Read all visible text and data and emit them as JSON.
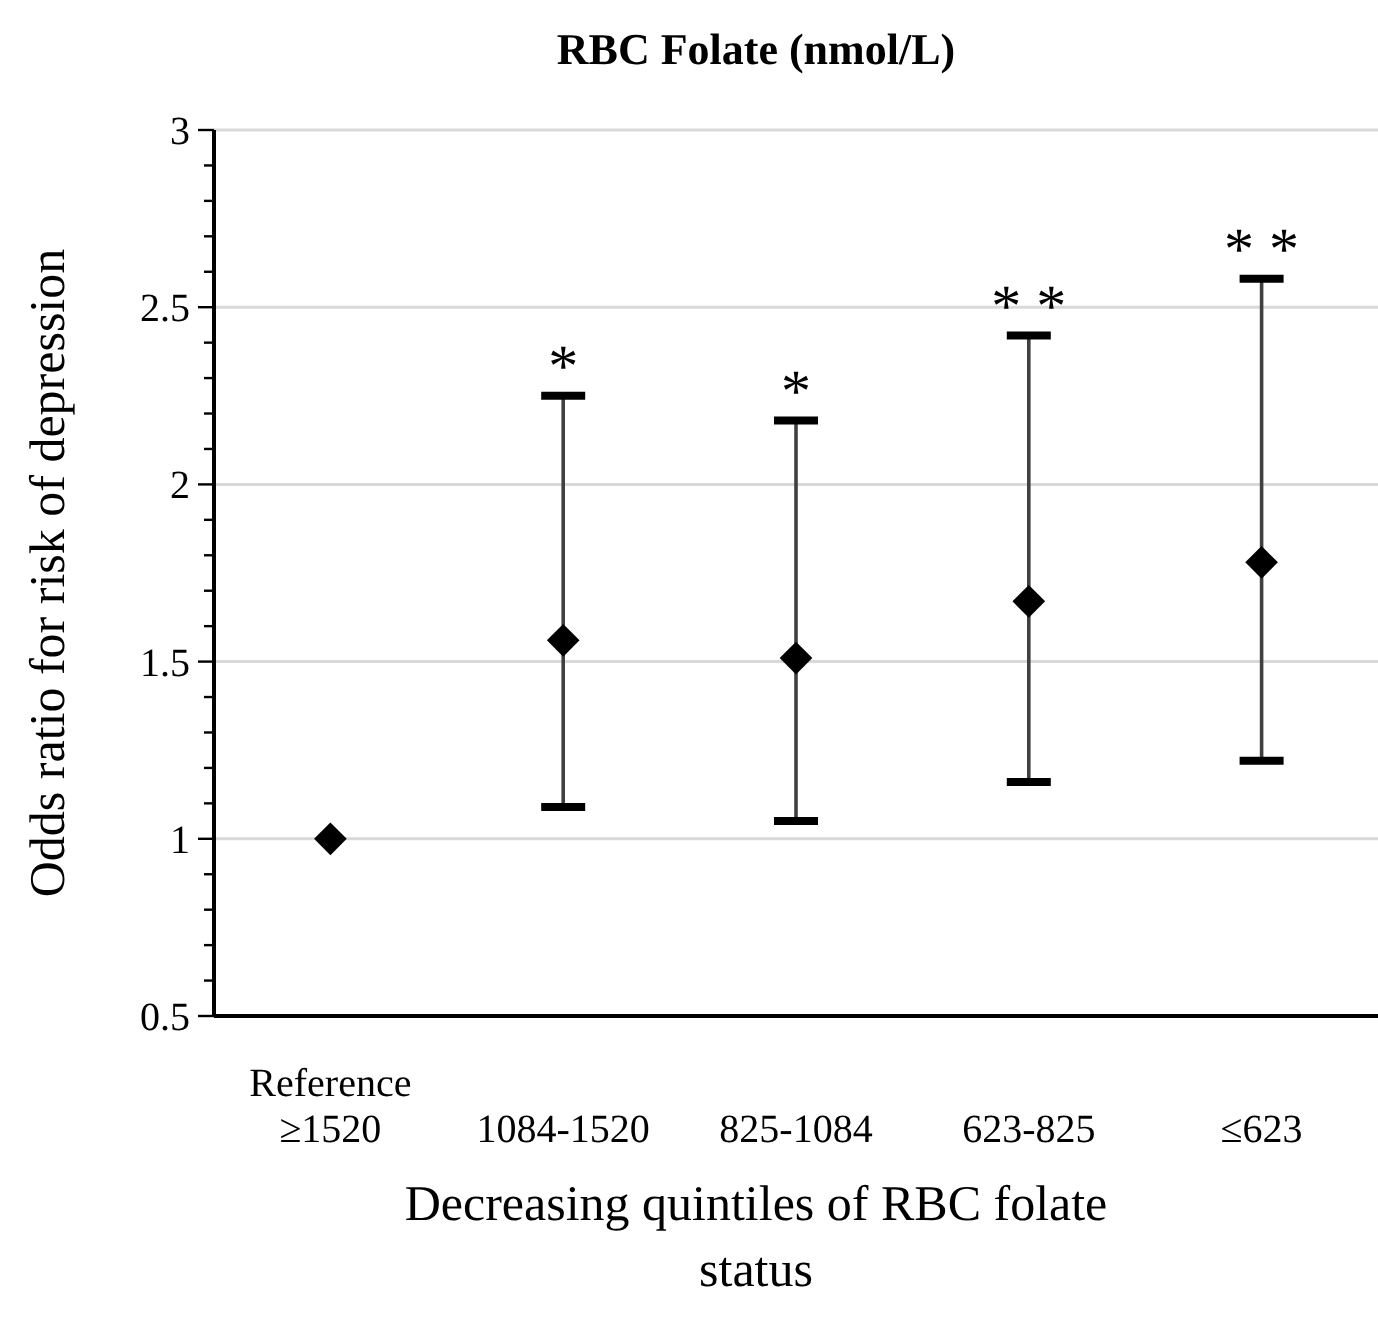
{
  "chart_data": {
    "type": "scatter",
    "title": "RBC Folate (nmol/L)",
    "xlabel": "Decreasing quintiles of RBC folate status",
    "ylabel": "Odds ratio for risk of depression",
    "categories": [
      "Reference\n≥1520",
      "1084-1520",
      "825-1084",
      "623-825",
      "≤623"
    ],
    "series": [
      {
        "color": "#000000",
        "values": [
          1,
          1.56,
          1.51,
          1.67,
          1.78
        ],
        "errors": [
          null,
          [
            1.09,
            2.25
          ],
          [
            1.05,
            2.18
          ],
          [
            1.16,
            2.42
          ],
          [
            1.22,
            2.58
          ]
        ]
      }
    ],
    "marker": "diamond",
    "grid": "y",
    "ylim": [
      0.5,
      3
    ],
    "yticks": [
      0.5,
      {
        "value": 0.6,
        "label": null
      },
      {
        "value": 0.7,
        "label": null
      },
      {
        "value": 0.8,
        "label": null
      },
      {
        "value": 0.9,
        "label": null
      },
      1,
      {
        "value": 1.1,
        "label": null
      },
      {
        "value": 1.2,
        "label": null
      },
      {
        "value": 1.3,
        "label": null
      },
      {
        "value": 1.4,
        "label": null
      },
      1.5,
      {
        "value": 1.6,
        "label": null
      },
      {
        "value": 1.7,
        "label": null
      },
      {
        "value": 1.8,
        "label": null
      },
      {
        "value": 1.9,
        "label": null
      },
      2,
      {
        "value": 2.1,
        "label": null
      },
      {
        "value": 2.2,
        "label": null
      },
      {
        "value": 2.3,
        "label": null
      },
      {
        "value": 2.4,
        "label": null
      },
      2.5,
      {
        "value": 2.6,
        "label": null
      },
      {
        "value": 2.7,
        "label": null
      },
      {
        "value": 2.8,
        "label": null
      },
      {
        "value": 2.9,
        "label": null
      },
      3
    ],
    "annotations": [
      "*",
      "*",
      "* *",
      "* *"
    ]
  }
}
